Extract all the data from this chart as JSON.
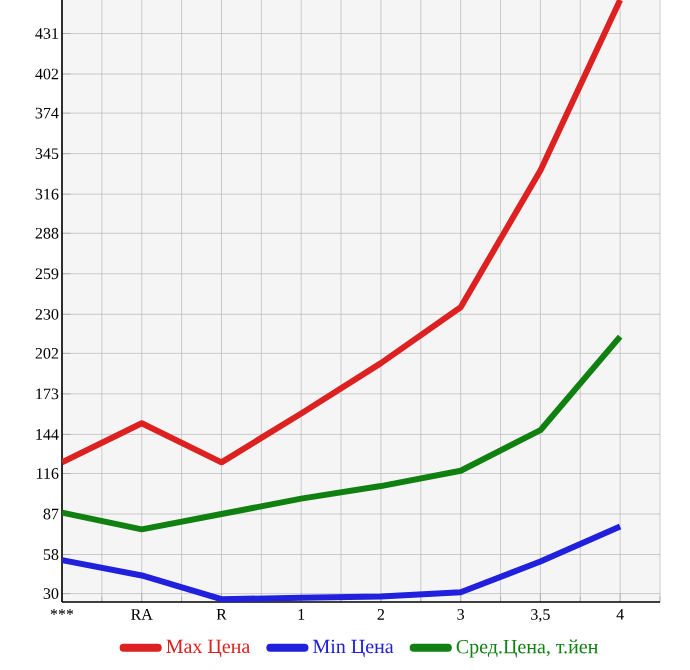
{
  "chart_data": {
    "type": "line",
    "categories": [
      "***",
      "RA",
      "R",
      "1",
      "2",
      "3",
      "3,5",
      "4"
    ],
    "series": [
      {
        "name": "Max Цена",
        "color": "#dd2020",
        "values": [
          124,
          152,
          124,
          159,
          195,
          235,
          333,
          455
        ]
      },
      {
        "name": "Min Цена",
        "color": "#2020dd",
        "values": [
          54,
          43,
          26,
          27,
          28,
          31,
          53,
          78
        ]
      },
      {
        "name": "Сред.Цена, т.йен",
        "color": "#108010",
        "values": [
          88,
          76,
          87,
          98,
          107,
          118,
          147,
          214
        ]
      }
    ],
    "ylim": [
      24,
      455
    ],
    "yticks": [
      30,
      58,
      87,
      116,
      144,
      173,
      202,
      230,
      259,
      288,
      316,
      345,
      374,
      402,
      431
    ],
    "grid": true,
    "legend": "bottom",
    "marker": "none",
    "line_style": "solid"
  }
}
